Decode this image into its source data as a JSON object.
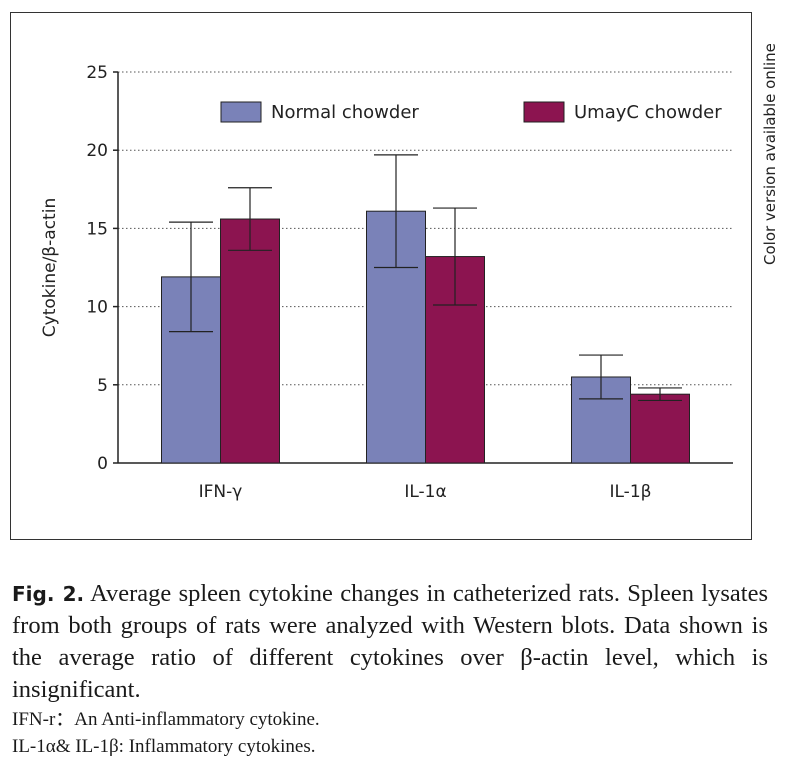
{
  "chart_data": {
    "type": "bar",
    "title": "",
    "xlabel": "",
    "ylabel": "Cytokine/β-actin",
    "ylim": [
      0,
      25
    ],
    "yticks": [
      0,
      5,
      10,
      15,
      20,
      25
    ],
    "grid": "horizontal dotted",
    "legend_position": "top",
    "categories": [
      "IFN-γ",
      "IL-1α",
      "IL-1β"
    ],
    "series": [
      {
        "name": "Normal chowder",
        "color": "#7a82b8",
        "values": [
          11.9,
          16.1,
          5.5
        ],
        "errors": [
          3.5,
          3.6,
          1.4
        ]
      },
      {
        "name": "UmayC chowder",
        "color": "#8c1450",
        "values": [
          15.6,
          13.2,
          4.4
        ],
        "errors": [
          2.0,
          3.1,
          0.4
        ]
      }
    ]
  },
  "side_note": "Color version available online",
  "caption": {
    "label": "Fig. 2.",
    "text": "Average spleen cytokine changes in catheterized rats. Spleen lysates from both groups of rats were analyzed with Western blots. Data shown is the average ratio of different cytokines over β-actin level, which is insignificant.",
    "note1": "IFN-r：An Anti-inflammatory cytokine.",
    "note2": "IL-1α& IL-1β: Inflammatory cytokines."
  }
}
